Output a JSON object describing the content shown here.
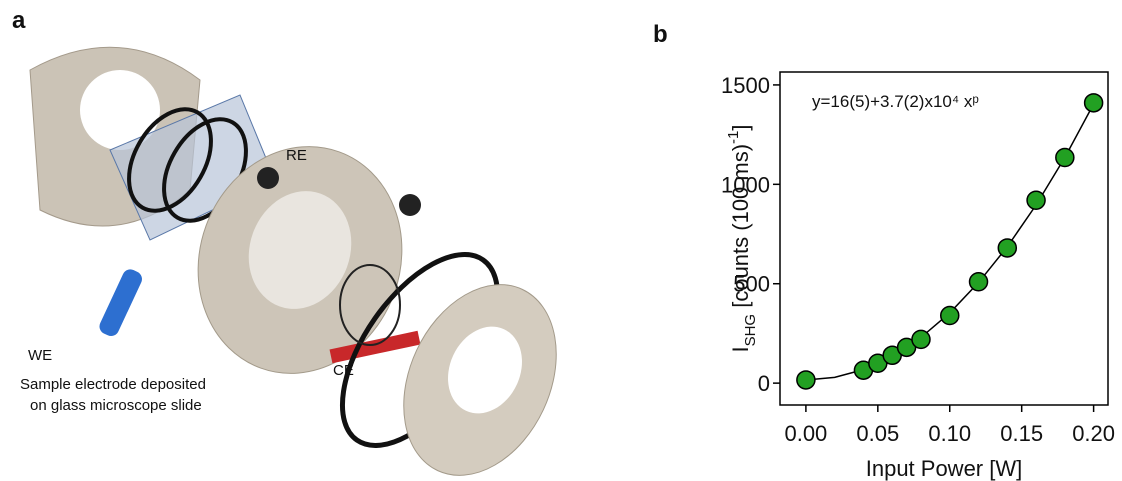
{
  "panel_labels": [
    "a",
    "b"
  ],
  "diagram": {
    "labels": {
      "re": "RE",
      "we": "WE",
      "ce": "CE",
      "caption_line1": "Sample electrode deposited",
      "caption_line2": "on glass microscope slide"
    }
  },
  "chart_data": {
    "type": "scatter",
    "annotation": "y=16(5)+3.7(2)x10⁴ xᵖ",
    "xlabel": "Input Power [W]",
    "ylabel": {
      "main": "I",
      "sub": "SHG",
      "rest": " [counts (100 ms)",
      "sup": "-1",
      "end": "]"
    },
    "x": [
      0,
      0.04,
      0.05,
      0.06,
      0.07,
      0.08,
      0.1,
      0.12,
      0.14,
      0.16,
      0.18,
      0.2
    ],
    "series": [
      {
        "color": "#22a022",
        "values": [
          16,
          65,
          100,
          140,
          180,
          220,
          340,
          510,
          680,
          920,
          1135,
          1410
        ]
      }
    ],
    "fit": {
      "color": "#000000",
      "x": [
        0,
        0.02,
        0.04,
        0.06,
        0.08,
        0.1,
        0.12,
        0.14,
        0.16,
        0.18,
        0.2
      ],
      "values": [
        16,
        29,
        68,
        135,
        230,
        353,
        506,
        686,
        896,
        1135,
        1404
      ]
    },
    "xlim": [
      -0.018,
      0.21
    ],
    "ylim": [
      -110,
      1565
    ],
    "xticks": [
      {
        "value": 0,
        "label": "0.00"
      },
      0.05,
      {
        "value": 0.1,
        "label": "0.10"
      },
      0.15,
      {
        "value": 0.2,
        "label": "0.20"
      }
    ],
    "yticks": [
      0,
      500,
      1000,
      1500
    ]
  }
}
